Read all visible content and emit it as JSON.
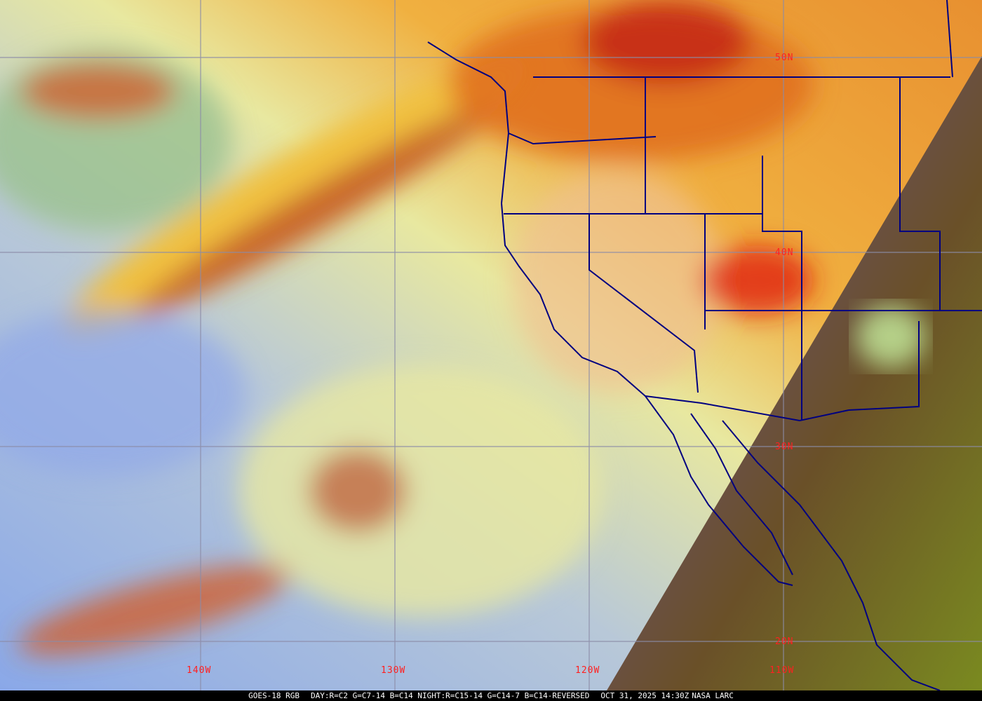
{
  "satellite_product": "GOES-18 RGB",
  "recipe": "DAY:R=C2 G=C7-14 B=C14 NIGHT:R=C15-14 G=C14-7 B=C14-REVERSED",
  "timestamp": "OCT 31, 2025 14:30Z",
  "credit": "NASA LARC",
  "grid": {
    "latitudes": [
      "50N",
      "40N",
      "30N",
      "20N"
    ],
    "longitudes": [
      "140W",
      "130W",
      "120W",
      "110W"
    ],
    "line_color": "#8c8ca8",
    "label_color": "#ff2020"
  },
  "colors": {
    "boundaries": "#000080",
    "day_clear_ocean": "#8fb0e8",
    "high_cloud": "#f0a030",
    "night_land": "#6a6a20"
  }
}
